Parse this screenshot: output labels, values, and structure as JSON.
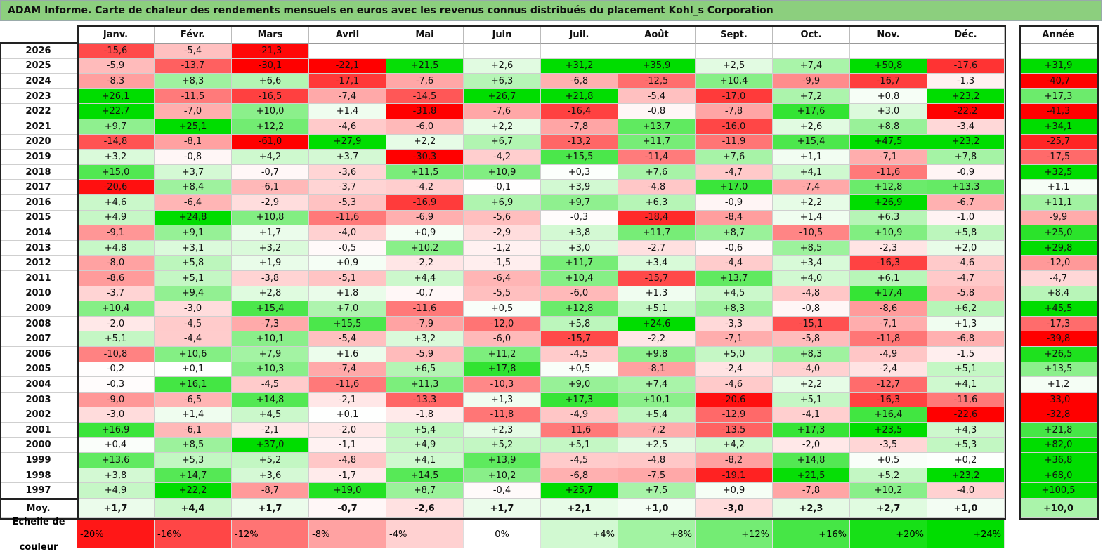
{
  "title": "ADAM Informe. Carte de chaleur des rendements mensuels en euros avec les revenus connus distribués du placement Kohl_s Corporation",
  "chart_data": {
    "type": "heatmap",
    "months": [
      "Janv.",
      "Févr.",
      "Mars",
      "Avril",
      "Mai",
      "Juin",
      "Juil.",
      "Août",
      "Sept.",
      "Oct.",
      "Nov.",
      "Déc."
    ],
    "year_header": "Année",
    "rows": [
      {
        "year": "2026",
        "months": [
          "-15,6",
          "-5,4",
          "-21,3",
          "",
          "",
          "",
          "",
          "",
          "",
          "",
          "",
          ""
        ],
        "total": ""
      },
      {
        "year": "2025",
        "months": [
          "-5,9",
          "-13,7",
          "-30,1",
          "-22,1",
          "+21,5",
          "+2,6",
          "+31,2",
          "+35,9",
          "+2,5",
          "+7,4",
          "+50,8",
          "-17,6"
        ],
        "total": "+31,9"
      },
      {
        "year": "2024",
        "months": [
          "-8,3",
          "+8,3",
          "+6,6",
          "-17,1",
          "-7,6",
          "+6,3",
          "-6,8",
          "-12,5",
          "+10,4",
          "-9,9",
          "-16,7",
          "-1,3"
        ],
        "total": "-40,7"
      },
      {
        "year": "2023",
        "months": [
          "+26,1",
          "-11,5",
          "-16,5",
          "-7,4",
          "-14,5",
          "+26,7",
          "+21,8",
          "-5,4",
          "-17,0",
          "+7,2",
          "+0,8",
          "+23,2"
        ],
        "total": "+17,3"
      },
      {
        "year": "2022",
        "months": [
          "+22,7",
          "-7,0",
          "+10,0",
          "+1,4",
          "-31,8",
          "-7,6",
          "-16,4",
          "-0,8",
          "-7,8",
          "+17,6",
          "+3,0",
          "-22,2"
        ],
        "total": "-41,3"
      },
      {
        "year": "2021",
        "months": [
          "+9,7",
          "+25,1",
          "+12,2",
          "-4,6",
          "-6,0",
          "+2,2",
          "-7,8",
          "+13,7",
          "-16,0",
          "+2,6",
          "+8,8",
          "-3,4"
        ],
        "total": "+34,1"
      },
      {
        "year": "2020",
        "months": [
          "-14,8",
          "-8,1",
          "-61,0",
          "+27,9",
          "+2,2",
          "+6,7",
          "-13,2",
          "+11,7",
          "-11,9",
          "+15,4",
          "+47,5",
          "+23,2"
        ],
        "total": "-25,7"
      },
      {
        "year": "2019",
        "months": [
          "+3,2",
          "-0,8",
          "+4,2",
          "+3,7",
          "-30,3",
          "-4,2",
          "+15,5",
          "-11,4",
          "+7,6",
          "+1,1",
          "-7,1",
          "+7,8"
        ],
        "total": "-17,5"
      },
      {
        "year": "2018",
        "months": [
          "+15,0",
          "+3,7",
          "-0,7",
          "-3,6",
          "+11,5",
          "+10,9",
          "+0,3",
          "+7,6",
          "-4,7",
          "+4,1",
          "-11,6",
          "-0,9"
        ],
        "total": "+32,5"
      },
      {
        "year": "2017",
        "months": [
          "-20,6",
          "+8,4",
          "-6,1",
          "-3,7",
          "-4,2",
          "-0,1",
          "+3,9",
          "-4,8",
          "+17,0",
          "-7,4",
          "+12,8",
          "+13,3"
        ],
        "total": "+1,1"
      },
      {
        "year": "2016",
        "months": [
          "+4,6",
          "-6,4",
          "-2,9",
          "-5,3",
          "-16,9",
          "+6,9",
          "+9,7",
          "+6,3",
          "-0,9",
          "+2,2",
          "+26,9",
          "-6,7"
        ],
        "total": "+11,1"
      },
      {
        "year": "2015",
        "months": [
          "+4,9",
          "+24,8",
          "+10,8",
          "-11,6",
          "-6,9",
          "-5,6",
          "-0,3",
          "-18,4",
          "-8,4",
          "+1,4",
          "+6,3",
          "-1,0"
        ],
        "total": "-9,9"
      },
      {
        "year": "2014",
        "months": [
          "-9,1",
          "+9,1",
          "+1,7",
          "-4,0",
          "+0,9",
          "-2,9",
          "+3,8",
          "+11,7",
          "+8,7",
          "-10,5",
          "+10,9",
          "+5,8"
        ],
        "total": "+25,0"
      },
      {
        "year": "2013",
        "months": [
          "+4,8",
          "+3,1",
          "+3,2",
          "-0,5",
          "+10,2",
          "-1,2",
          "+3,0",
          "-2,7",
          "-0,6",
          "+8,5",
          "-2,3",
          "+2,0"
        ],
        "total": "+29,8"
      },
      {
        "year": "2012",
        "months": [
          "-8,0",
          "+5,8",
          "+1,9",
          "+0,9",
          "-2,2",
          "-1,5",
          "+11,7",
          "+3,4",
          "-4,4",
          "+3,4",
          "-16,3",
          "-4,6"
        ],
        "total": "-12,0"
      },
      {
        "year": "2011",
        "months": [
          "-8,6",
          "+5,1",
          "-3,8",
          "-5,1",
          "+4,4",
          "-6,4",
          "+10,4",
          "-15,7",
          "+13,7",
          "+4,0",
          "+6,1",
          "-4,7"
        ],
        "total": "-4,7"
      },
      {
        "year": "2010",
        "months": [
          "-3,7",
          "+9,4",
          "+2,8",
          "+1,8",
          "-0,7",
          "-5,5",
          "-6,0",
          "+1,3",
          "+4,5",
          "-4,8",
          "+17,4",
          "-5,8"
        ],
        "total": "+8,4"
      },
      {
        "year": "2009",
        "months": [
          "+10,4",
          "-3,0",
          "+15,4",
          "+7,0",
          "-11,6",
          "+0,5",
          "+12,8",
          "+5,1",
          "+8,3",
          "-0,8",
          "-8,6",
          "+6,2"
        ],
        "total": "+45,5"
      },
      {
        "year": "2008",
        "months": [
          "-2,0",
          "-4,5",
          "-7,3",
          "+15,5",
          "-7,9",
          "-12,0",
          "+5,8",
          "+24,6",
          "-3,3",
          "-15,1",
          "-7,1",
          "+1,3"
        ],
        "total": "-17,3"
      },
      {
        "year": "2007",
        "months": [
          "+5,1",
          "-4,4",
          "+10,1",
          "-5,4",
          "+3,2",
          "-6,0",
          "-15,7",
          "-2,2",
          "-7,1",
          "-5,8",
          "-11,8",
          "-6,8"
        ],
        "total": "-39,8"
      },
      {
        "year": "2006",
        "months": [
          "-10,8",
          "+10,6",
          "+7,9",
          "+1,6",
          "-5,9",
          "+11,2",
          "-4,5",
          "+9,8",
          "+5,0",
          "+8,3",
          "-4,9",
          "-1,5"
        ],
        "total": "+26,5"
      },
      {
        "year": "2005",
        "months": [
          "-0,2",
          "+0,1",
          "+10,3",
          "-7,4",
          "+6,5",
          "+17,8",
          "+0,5",
          "-8,1",
          "-2,4",
          "-4,0",
          "-2,4",
          "+5,1"
        ],
        "total": "+13,5"
      },
      {
        "year": "2004",
        "months": [
          "-0,3",
          "+16,1",
          "-4,5",
          "-11,6",
          "+11,3",
          "-10,3",
          "+9,0",
          "+7,4",
          "-4,6",
          "+2,2",
          "-12,7",
          "+4,1"
        ],
        "total": "+1,2"
      },
      {
        "year": "2003",
        "months": [
          "-9,0",
          "-6,5",
          "+14,8",
          "-2,1",
          "-13,3",
          "+1,3",
          "+17,3",
          "+10,1",
          "-20,6",
          "+5,1",
          "-16,3",
          "-11,6"
        ],
        "total": "-33,0"
      },
      {
        "year": "2002",
        "months": [
          "-3,0",
          "+1,4",
          "+4,5",
          "+0,1",
          "-1,8",
          "-11,8",
          "-4,9",
          "+5,4",
          "-12,9",
          "-4,1",
          "+16,4",
          "-22,6"
        ],
        "total": "-32,8"
      },
      {
        "year": "2001",
        "months": [
          "+16,9",
          "-6,1",
          "-2,1",
          "-2,0",
          "+5,4",
          "+2,3",
          "-11,6",
          "-7,2",
          "-13,5",
          "+17,3",
          "+23,5",
          "+4,3"
        ],
        "total": "+21,8"
      },
      {
        "year": "2000",
        "months": [
          "+0,4",
          "+8,5",
          "+37,0",
          "-1,1",
          "+4,9",
          "+5,2",
          "+5,1",
          "+2,5",
          "+4,2",
          "-2,0",
          "-3,5",
          "+5,3"
        ],
        "total": "+82,0"
      },
      {
        "year": "1999",
        "months": [
          "+13,6",
          "+5,3",
          "+5,2",
          "-4,8",
          "+4,1",
          "+13,9",
          "-4,5",
          "-4,8",
          "-8,2",
          "+14,8",
          "+0,5",
          "+0,2"
        ],
        "total": "+36,8"
      },
      {
        "year": "1998",
        "months": [
          "+3,8",
          "+14,7",
          "+3,6",
          "-1,7",
          "+14,5",
          "+10,2",
          "-6,8",
          "-7,5",
          "-19,1",
          "+21,5",
          "+5,2",
          "+23,2"
        ],
        "total": "+68,0"
      },
      {
        "year": "1997",
        "months": [
          "+4,9",
          "+22,2",
          "-8,7",
          "+19,0",
          "+8,7",
          "-0,4",
          "+25,7",
          "+7,5",
          "+0,9",
          "-7,8",
          "+10,2",
          "-4,0"
        ],
        "total": "+100,5"
      }
    ],
    "average": {
      "label": "Moy.",
      "months": [
        "+1,7",
        "+4,4",
        "+1,7",
        "-0,7",
        "-2,6",
        "+1,7",
        "+2,1",
        "+1,0",
        "-3,0",
        "+2,3",
        "+2,7",
        "+1,0"
      ],
      "total": "+10,0"
    },
    "scale": {
      "label_line1": "Echelle de",
      "label_line2": "couleur",
      "steps": [
        {
          "text": "-20%",
          "value": -20,
          "align": "left"
        },
        {
          "text": "-16%",
          "value": -16,
          "align": "left"
        },
        {
          "text": "-12%",
          "value": -12,
          "align": "left"
        },
        {
          "text": "-8%",
          "value": -8,
          "align": "left"
        },
        {
          "text": "-4%",
          "value": -4,
          "align": "left"
        },
        {
          "text": "0%",
          "value": 0,
          "align": "center"
        },
        {
          "text": "+4%",
          "value": 4,
          "align": "right"
        },
        {
          "text": "+8%",
          "value": 8,
          "align": "right"
        },
        {
          "text": "+12%",
          "value": 12,
          "align": "right"
        },
        {
          "text": "+16%",
          "value": 16,
          "align": "right"
        },
        {
          "text": "+20%",
          "value": 20,
          "align": "right"
        },
        {
          "text": "+24%",
          "value": 24,
          "align": "right"
        }
      ]
    },
    "colors": {
      "negative_max": "#ff0000",
      "neutral": "#ffffff",
      "positive_max": "#00dd00",
      "title_bg": "#8ccf7e"
    }
  }
}
